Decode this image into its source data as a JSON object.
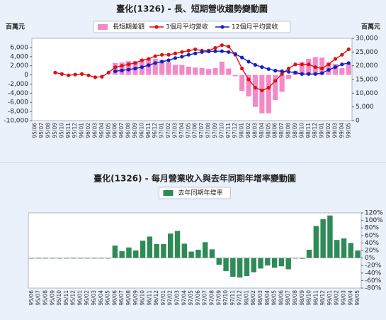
{
  "chart_data": [
    {
      "type": "combo",
      "title": "臺化(1326) - 長、短期營收趨勢變動圖",
      "ylabel": "百萬元",
      "y2label": "百萬元",
      "categories": [
        "95/06",
        "95/07",
        "95/08",
        "95/09",
        "95/10",
        "95/11",
        "95/12",
        "96/01",
        "96/02",
        "96/03",
        "96/04",
        "96/05",
        "96/06",
        "96/07",
        "96/08",
        "96/09",
        "96/10",
        "96/11",
        "96/12",
        "97/01",
        "97/02",
        "97/03",
        "97/04",
        "97/05",
        "97/06",
        "97/07",
        "97/08",
        "97/09",
        "97/10",
        "97/11",
        "97/12",
        "98/01",
        "98/02",
        "98/03",
        "98/04",
        "98/05",
        "98/06",
        "98/07",
        "98/08",
        "98/09",
        "98/10",
        "98/11",
        "98/12",
        "99/01",
        "99/02",
        "99/03",
        "99/04",
        "99/05"
      ],
      "series": [
        {
          "name": "長短期差額",
          "type": "bar",
          "color": "#f28ac6",
          "axis": "y",
          "values": [
            null,
            null,
            null,
            null,
            null,
            null,
            null,
            null,
            null,
            null,
            null,
            null,
            2600,
            2700,
            3000,
            3000,
            3400,
            3500,
            3500,
            3300,
            2800,
            2200,
            2200,
            1800,
            1600,
            1500,
            1300,
            1500,
            2900,
            1400,
            -300,
            -3500,
            -4700,
            -7000,
            -8400,
            -8400,
            -5500,
            -3700,
            -900,
            900,
            2800,
            3500,
            3900,
            3800,
            2700,
            2400,
            1500,
            2400
          ]
        },
        {
          "name": "3個月平均營收",
          "type": "line",
          "color": "#e01010",
          "axis": "y2",
          "values": [
            null,
            null,
            null,
            17500,
            17000,
            16500,
            16800,
            17000,
            16500,
            15800,
            16000,
            17500,
            19500,
            20000,
            20500,
            21000,
            22000,
            22500,
            23500,
            24000,
            24000,
            24500,
            25000,
            25500,
            26000,
            25500,
            25500,
            26500,
            27500,
            27000,
            24000,
            19000,
            15000,
            12000,
            11000,
            12000,
            14500,
            17000,
            19000,
            20500,
            20500,
            20500,
            19500,
            19000,
            20500,
            22500,
            24000,
            26000
          ]
        },
        {
          "name": "12個月平均營收",
          "type": "line",
          "color": "#1020c8",
          "axis": "y2",
          "values": [
            null,
            null,
            null,
            null,
            null,
            null,
            null,
            null,
            null,
            null,
            null,
            null,
            18000,
            18300,
            18600,
            19000,
            19500,
            20200,
            21000,
            21500,
            22000,
            22800,
            23300,
            24000,
            24500,
            25000,
            25200,
            25300,
            25300,
            25000,
            24300,
            23000,
            21500,
            20300,
            19500,
            18800,
            18200,
            18000,
            17800,
            17500,
            17000,
            17000,
            17000,
            17300,
            18500,
            19500,
            20500,
            21000
          ]
        }
      ],
      "ylim": [
        -10000,
        8000
      ],
      "yticks": [
        {
          "value": -10000,
          "label": "-10,000"
        },
        {
          "value": -8000,
          "label": "-8,000"
        },
        {
          "value": -6000,
          "label": "-6,000"
        },
        {
          "value": -4000,
          "label": "-4,000"
        },
        {
          "value": -2000,
          "label": "-2,000"
        },
        0,
        {
          "value": 2000,
          "label": "2,000"
        },
        {
          "value": 4000,
          "label": "4,000"
        },
        {
          "value": 6000,
          "label": "6,000"
        }
      ],
      "ytick_color": "#e00000",
      "y2lim": [
        0,
        30000
      ],
      "y2ticks": [
        0,
        {
          "value": 5000,
          "label": "5,000"
        },
        {
          "value": 10000,
          "label": "10,000"
        },
        {
          "value": 15000,
          "label": "15,000"
        },
        {
          "value": 20000,
          "label": "20,000"
        },
        {
          "value": 25000,
          "label": "25,000"
        },
        {
          "value": 30000,
          "label": "30,000"
        }
      ],
      "y2tick_color": "#1020c8"
    },
    {
      "type": "bar",
      "title": "臺化(1326) - 每月營業收入與去年同期年增率變動圖",
      "categories": [
        "95/06",
        "95/07",
        "95/08",
        "95/09",
        "95/10",
        "95/11",
        "95/12",
        "96/01",
        "96/02",
        "96/03",
        "96/04",
        "96/05",
        "96/06",
        "96/07",
        "96/08",
        "96/09",
        "96/10",
        "96/11",
        "96/12",
        "97/01",
        "97/02",
        "97/03",
        "97/04",
        "97/05",
        "97/06",
        "97/07",
        "97/08",
        "97/09",
        "97/10",
        "97/11",
        "97/12",
        "98/01",
        "98/02",
        "98/03",
        "98/04",
        "98/05",
        "98/06",
        "98/07",
        "98/08",
        "98/09",
        "98/10",
        "98/11",
        "98/12",
        "99/01",
        "99/02",
        "99/03",
        "99/04",
        "99/05"
      ],
      "series": [
        {
          "name": "去年同期年增率",
          "type": "bar",
          "color": "#2e8b57",
          "axis": "y2",
          "values": [
            0,
            0,
            0,
            0,
            0,
            0,
            0,
            0,
            0,
            0,
            0,
            0,
            33,
            18,
            28,
            20,
            46,
            57,
            37,
            37,
            65,
            72,
            38,
            17,
            22,
            42,
            23,
            -18,
            -35,
            -50,
            -52,
            -48,
            -38,
            -28,
            -20,
            -26,
            -22,
            -30,
            0,
            -2,
            22,
            85,
            103,
            113,
            48,
            52,
            40,
            20
          ]
        }
      ],
      "y2lim": [
        -80,
        120
      ],
      "y2ticks": [
        {
          "value": -80,
          "label": "-80%"
        },
        {
          "value": -60,
          "label": "-60%"
        },
        {
          "value": -40,
          "label": "-40%"
        },
        {
          "value": -20,
          "label": "-20%"
        },
        {
          "value": 0,
          "label": "0%"
        },
        {
          "value": 20,
          "label": "20%"
        },
        {
          "value": 40,
          "label": "40%"
        },
        {
          "value": 60,
          "label": "60%"
        },
        {
          "value": 80,
          "label": "80%"
        },
        {
          "value": 100,
          "label": "100%"
        },
        {
          "value": 120,
          "label": "120%"
        }
      ],
      "y2tick_color": "#1020c8"
    }
  ]
}
